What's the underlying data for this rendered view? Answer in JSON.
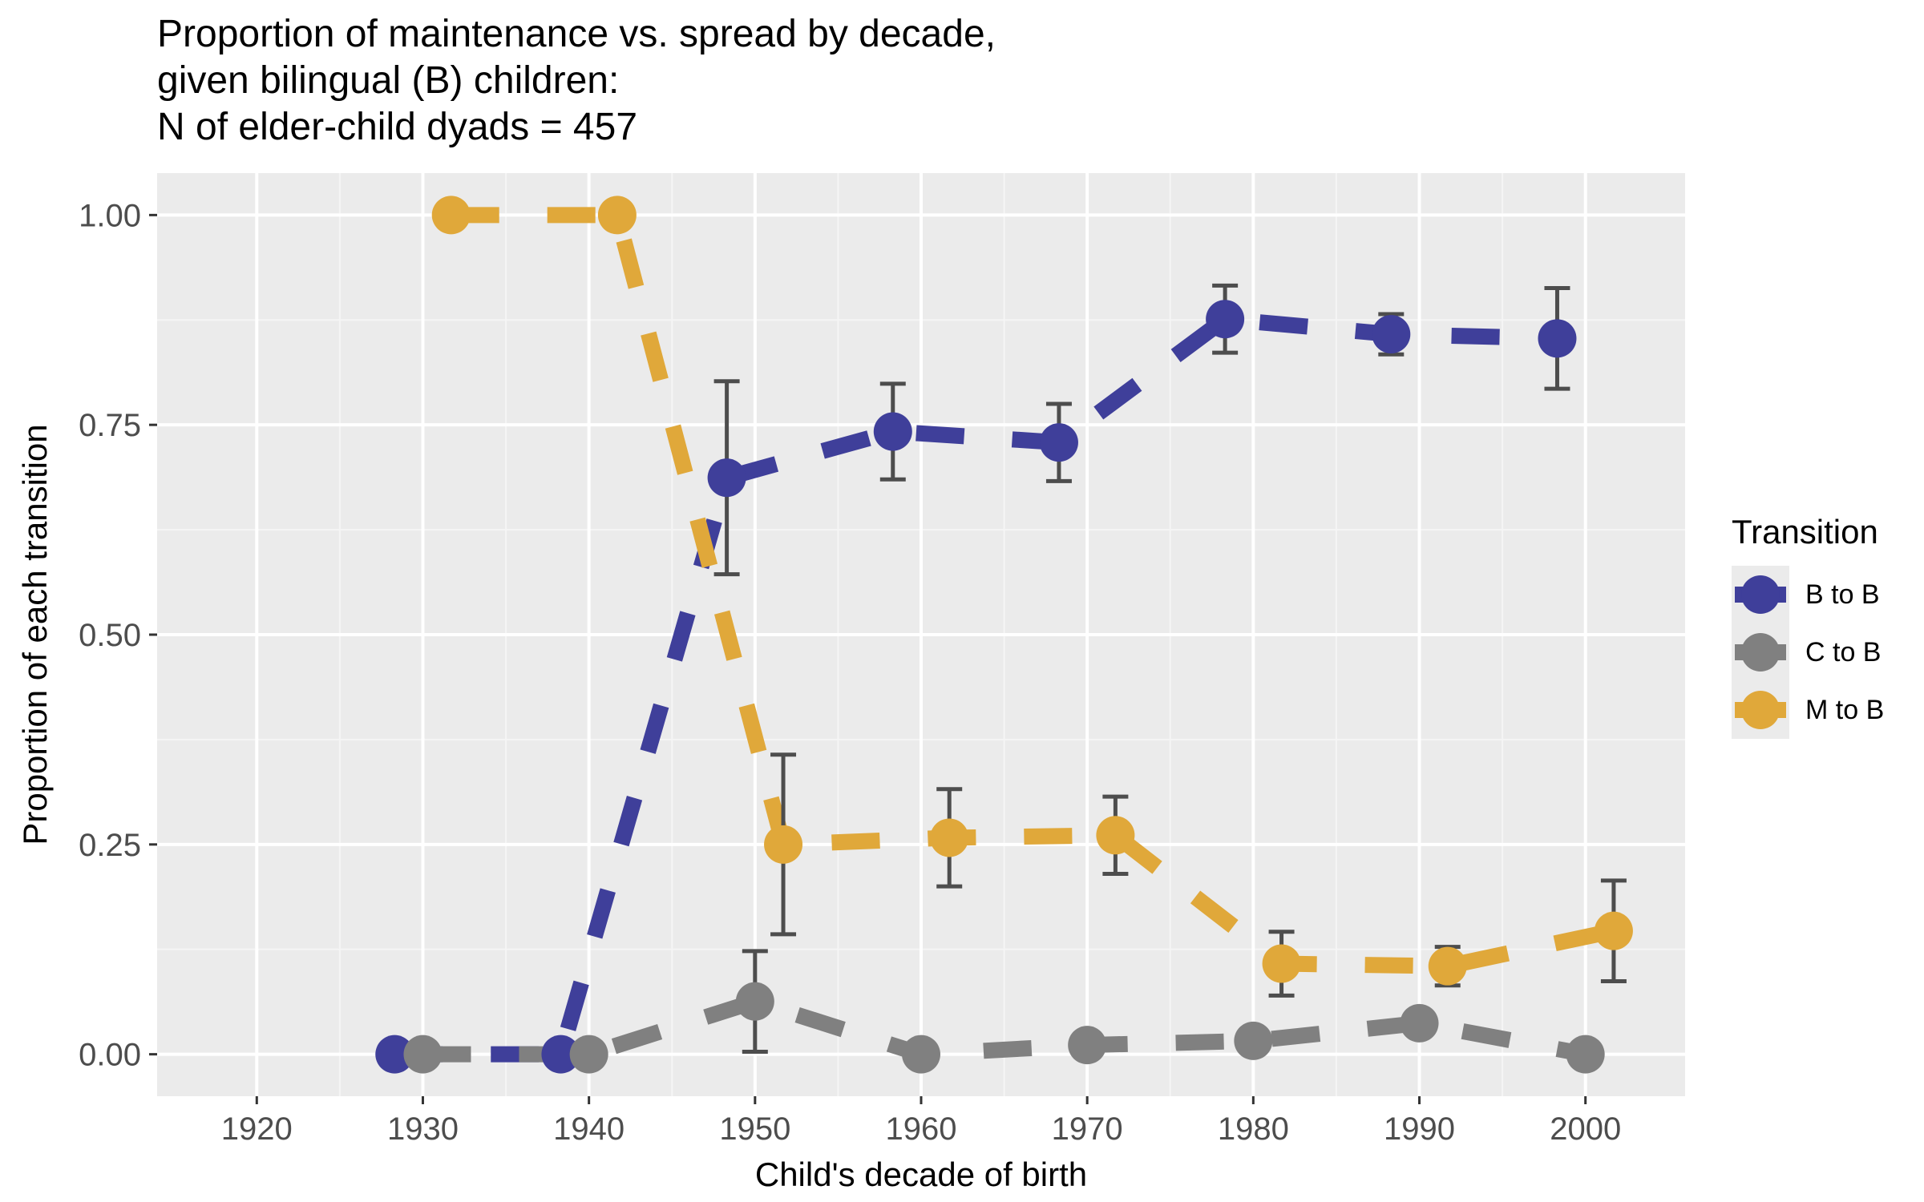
{
  "chart_data": {
    "type": "line",
    "title_lines": [
      "Proportion of maintenance vs. spread by decade,",
      "given bilingual (B) children:",
      "N of elder-child dyads = 457"
    ],
    "xlabel": "Child's decade of birth",
    "ylabel": "Proportion of each transition",
    "xlim": [
      1914,
      2006
    ],
    "ylim": [
      -0.05,
      1.05
    ],
    "x_ticks": [
      1920,
      1930,
      1940,
      1950,
      1960,
      1970,
      1980,
      1990,
      2000
    ],
    "x_tick_labels": [
      "1920",
      "1930",
      "1940",
      "1950",
      "1960",
      "1970",
      "1980",
      "1990",
      "2000"
    ],
    "y_ticks": [
      0,
      0.25,
      0.5,
      0.75,
      1.0
    ],
    "y_tick_labels": [
      "0.00",
      "0.25",
      "0.50",
      "0.75",
      "1.00"
    ],
    "grid": true,
    "legend_title": "Transition",
    "legend_position": "right",
    "series": [
      {
        "name": "B to B",
        "color": "#3f3f9a",
        "offset": -1.7,
        "points": [
          {
            "x": 1930,
            "y": 0.0
          },
          {
            "x": 1940,
            "y": 0.0
          },
          {
            "x": 1950,
            "y": 0.687,
            "lo": 0.572,
            "hi": 0.802
          },
          {
            "x": 1960,
            "y": 0.742,
            "lo": 0.685,
            "hi": 0.799
          },
          {
            "x": 1970,
            "y": 0.729,
            "lo": 0.683,
            "hi": 0.775
          },
          {
            "x": 1980,
            "y": 0.876,
            "lo": 0.836,
            "hi": 0.916
          },
          {
            "x": 1990,
            "y": 0.858,
            "lo": 0.834,
            "hi": 0.882
          },
          {
            "x": 2000,
            "y": 0.853,
            "lo": 0.793,
            "hi": 0.913
          }
        ]
      },
      {
        "name": "C to B",
        "color": "#808080",
        "offset": 0.0,
        "points": [
          {
            "x": 1930,
            "y": 0.0
          },
          {
            "x": 1940,
            "y": 0.0
          },
          {
            "x": 1950,
            "y": 0.063,
            "lo": 0.003,
            "hi": 0.123
          },
          {
            "x": 1960,
            "y": 0.0
          },
          {
            "x": 1970,
            "y": 0.011
          },
          {
            "x": 1980,
            "y": 0.016
          },
          {
            "x": 1990,
            "y": 0.037
          },
          {
            "x": 2000,
            "y": 0.0
          }
        ]
      },
      {
        "name": "M to B",
        "color": "#e0a83a",
        "offset": 1.7,
        "points": [
          {
            "x": 1930,
            "y": 1.0
          },
          {
            "x": 1940,
            "y": 1.0
          },
          {
            "x": 1950,
            "y": 0.25,
            "lo": 0.143,
            "hi": 0.357
          },
          {
            "x": 1960,
            "y": 0.258,
            "lo": 0.2,
            "hi": 0.316
          },
          {
            "x": 1970,
            "y": 0.261,
            "lo": 0.215,
            "hi": 0.307
          },
          {
            "x": 1980,
            "y": 0.108,
            "lo": 0.07,
            "hi": 0.146
          },
          {
            "x": 1990,
            "y": 0.105,
            "lo": 0.082,
            "hi": 0.128
          },
          {
            "x": 2000,
            "y": 0.147,
            "lo": 0.087,
            "hi": 0.207
          }
        ]
      }
    ]
  }
}
